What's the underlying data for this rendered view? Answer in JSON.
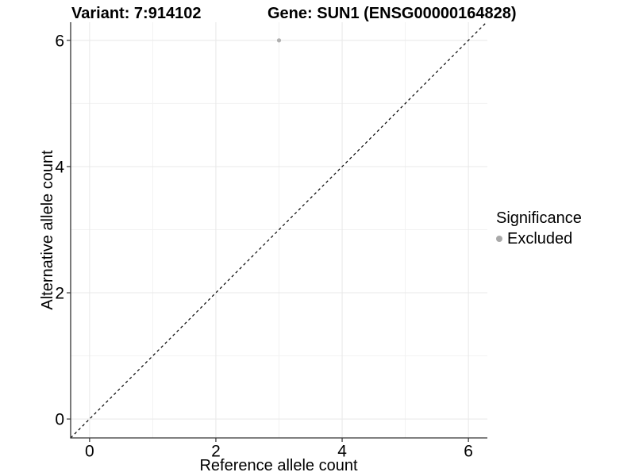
{
  "chart_data": {
    "type": "scatter",
    "title_left": "Variant: 7:914102",
    "title_right": "Gene: SUN1 (ENSG00000164828)",
    "xlabel": "Reference allele count",
    "ylabel": "Alternative allele count",
    "xlim": [
      -0.3,
      6.3
    ],
    "ylim": [
      -0.3,
      6.3
    ],
    "x_ticks": [
      0,
      2,
      4,
      6
    ],
    "y_ticks": [
      0,
      2,
      4,
      6
    ],
    "x_minor_ticks": [
      1,
      3,
      5
    ],
    "y_minor_ticks": [
      1,
      3,
      5
    ],
    "grid": true,
    "series": [
      {
        "name": "Excluded",
        "color": "#b0b0b0",
        "points": [
          {
            "x": 3,
            "y": 6
          }
        ]
      }
    ],
    "reference_line": {
      "type": "identity",
      "style": "dashed",
      "color": "#000000"
    },
    "legend": {
      "title": "Significance",
      "position": "right",
      "items": [
        {
          "label": "Excluded",
          "color": "#a9a9a9"
        }
      ]
    },
    "colors": {
      "background": "#ffffff",
      "axis": "#333333",
      "grid_major": "#e8e8e8",
      "grid_minor": "#f2f2f2",
      "text": "#000000"
    }
  }
}
